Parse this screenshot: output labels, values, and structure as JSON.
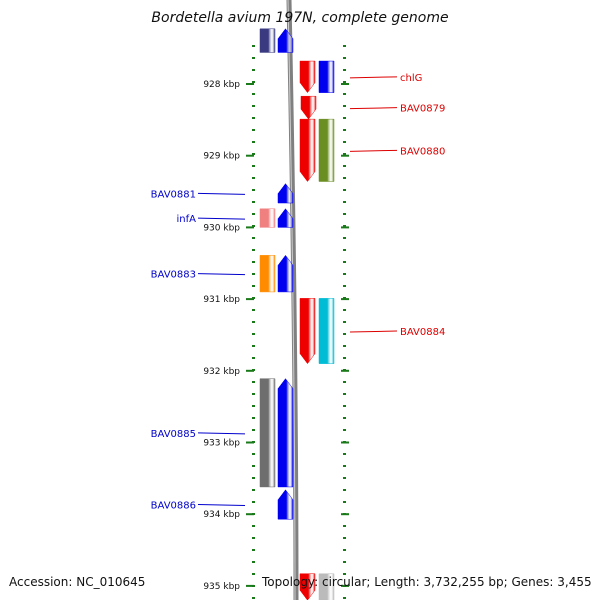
{
  "title": "Bordetella avium 197N, complete genome",
  "footer": {
    "accession": "Accession: NC_010645",
    "topology": "Topology: circular; Length: 3,732,255 bp; Genes: 3,455"
  },
  "scale": {
    "unit": "kbp",
    "ticks": [
      {
        "kbp": 928,
        "label": "928 kbp"
      },
      {
        "kbp": 929,
        "label": "929 kbp"
      },
      {
        "kbp": 930,
        "label": "930 kbp"
      },
      {
        "kbp": 931,
        "label": "931 kbp"
      },
      {
        "kbp": 932,
        "label": "932 kbp"
      },
      {
        "kbp": 933,
        "label": "933 kbp"
      },
      {
        "kbp": 934,
        "label": "934 kbp"
      },
      {
        "kbp": 935,
        "label": "935 kbp"
      }
    ]
  },
  "colors": {
    "forward_label": "#dd0000",
    "reverse_label": "#0000cc",
    "tick": "#1a7a1a",
    "backbone": "#808080"
  },
  "genes": [
    {
      "name": "",
      "strand": "reverse",
      "start_kbp": 927.23,
      "end_kbp": 927.56,
      "colors": [
        "#3a3a80",
        "#0000ee"
      ]
    },
    {
      "name": "chlG",
      "strand": "forward",
      "start_kbp": 927.68,
      "end_kbp": 928.12,
      "colors": [
        "#ee0000",
        "#0000ee"
      ]
    },
    {
      "name": "BAV0879",
      "strand": "forward",
      "start_kbp": 928.17,
      "end_kbp": 928.49,
      "colors": [
        "#ee0000"
      ]
    },
    {
      "name": "BAV0880",
      "strand": "forward",
      "start_kbp": 928.49,
      "end_kbp": 929.36,
      "colors": [
        "#ee0000",
        "#6b8e23"
      ]
    },
    {
      "name": "BAV0881",
      "strand": "reverse",
      "start_kbp": 929.39,
      "end_kbp": 929.66,
      "colors": [
        "#0000ee"
      ]
    },
    {
      "name": "infA",
      "strand": "reverse",
      "start_kbp": 929.74,
      "end_kbp": 930.0,
      "colors": [
        "#f08080",
        "#0000ee"
      ]
    },
    {
      "name": "BAV0883",
      "strand": "reverse",
      "start_kbp": 930.39,
      "end_kbp": 930.9,
      "colors": [
        "#ff8c00",
        "#0000ee"
      ]
    },
    {
      "name": "BAV0884",
      "strand": "forward",
      "start_kbp": 930.99,
      "end_kbp": 931.9,
      "colors": [
        "#ee0000",
        "#00bcd4"
      ]
    },
    {
      "name": "BAV0885",
      "strand": "reverse",
      "start_kbp": 932.11,
      "end_kbp": 933.62,
      "colors": [
        "#6e6e6e",
        "#0000ee"
      ]
    },
    {
      "name": "BAV0886",
      "strand": "reverse",
      "start_kbp": 933.66,
      "end_kbp": 934.07,
      "colors": [
        "#0000ee"
      ]
    },
    {
      "name": "",
      "strand": "forward",
      "start_kbp": 934.83,
      "end_kbp": 935.2,
      "colors": [
        "#ee0000",
        "#bbbbbb"
      ]
    }
  ]
}
